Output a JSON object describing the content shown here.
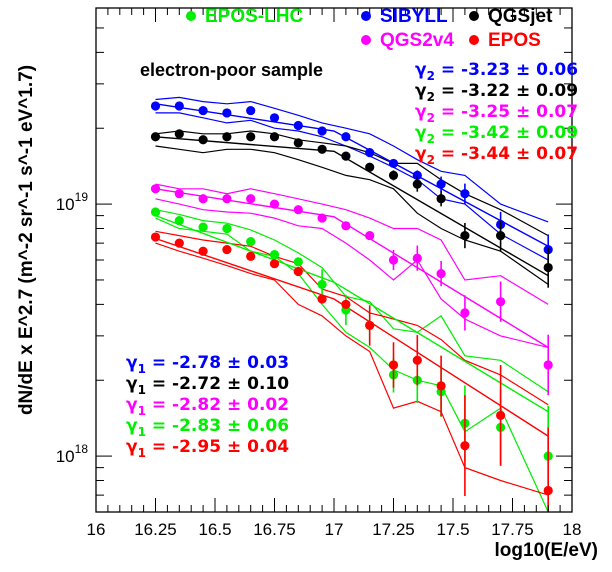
{
  "chart_data": {
    "type": "line",
    "ylabel": "dN/dE x E^2.7 (m^-2 sr^-1 s^-1 eV^1.7)",
    "xlabel": "log10(E/eV)",
    "xlim": [
      16,
      18
    ],
    "ylim": [
      6e+17,
      6e+19
    ],
    "yscale": "log",
    "x_ticks": [
      "16",
      "16.25",
      "16.5",
      "16.75",
      "17",
      "17.25",
      "17.5",
      "17.75",
      "18"
    ],
    "y_ticks": [
      {
        "value": 1e+18,
        "label": "10",
        "exp": "18"
      },
      {
        "value": 1e+19,
        "label": "10",
        "exp": "19"
      }
    ],
    "annotation": "electron-poor sample",
    "x": [
      16.25,
      16.35,
      16.45,
      16.55,
      16.65,
      16.75,
      16.85,
      16.95,
      17.05,
      17.15,
      17.25,
      17.35,
      17.45,
      17.55,
      17.7,
      17.9
    ],
    "series": [
      {
        "name": "EPOS-LHC",
        "color": "#00ee00",
        "values": [
          9.3e+18,
          8.6e+18,
          8.1e+18,
          8e+18,
          7.1e+18,
          6.3e+18,
          5.9e+18,
          4.8e+18,
          3.8e+18,
          3.3e+18,
          2.1e+18,
          2e+18,
          1.8e+18,
          1.35e+18,
          1.3e+18,
          1e+18
        ],
        "err": [
          0,
          0,
          0,
          0,
          0,
          0,
          0,
          0.06,
          0.06,
          0.07,
          0.07,
          0.09,
          0.1,
          0.15,
          0.15,
          0.2
        ],
        "band": [
          [
            8.8e+18,
            8e+18,
            7.8e+18,
            7.6e+18,
            6.5e+18,
            6.2e+18,
            5.3e+18,
            4e+18,
            3.1e+18,
            2.7e+18,
            2.2e+18,
            2e+18,
            1.9e+18,
            1.25e+18,
            1.55e+18,
            6e+17
          ],
          [
            9.5e+18,
            9.1e+18,
            8.6e+18,
            8.4e+18,
            7.9e+18,
            7.2e+18,
            6.4e+18,
            5.6e+18,
            4.3e+18,
            4.1e+18,
            3.2e+18,
            3.1e+18,
            3.6e+18,
            2.5e+18,
            2.4e+18,
            1.8e+18
          ]
        ]
      },
      {
        "name": "SIBYLL",
        "color": "#0000ff",
        "values": [
          2.45e+19,
          2.45e+19,
          2.35e+19,
          2.3e+19,
          2.35e+19,
          2.2e+19,
          2.05e+19,
          1.95e+19,
          1.85e+19,
          1.6e+19,
          1.45e+19,
          1.3e+19,
          1.2e+19,
          1.1e+19,
          8.3e+18,
          6.6e+18
        ],
        "err": [
          0,
          0,
          0,
          0,
          0,
          0,
          0,
          0,
          0,
          0,
          0,
          0.02,
          0.03,
          0.04,
          0.05,
          0.06
        ],
        "band": [
          [
            2.3e+19,
            2.3e+19,
            2.2e+19,
            2.1e+19,
            2.15e+19,
            2e+19,
            1.95e+19,
            1.85e+19,
            1.7e+19,
            1.55e+19,
            1.4e+19,
            1.25e+19,
            1.05e+19,
            1e+19,
            7.6e+18,
            6e+18
          ],
          [
            2.6e+19,
            2.65e+19,
            2.55e+19,
            2.5e+19,
            2.55e+19,
            2.4e+19,
            2.25e+19,
            2.1e+19,
            2e+19,
            1.9e+19,
            1.7e+19,
            1.5e+19,
            1.35e+19,
            1.3e+19,
            1e+19,
            8.5e+18
          ]
        ]
      },
      {
        "name": "QGSjet",
        "color": "#000000",
        "values": [
          1.85e+19,
          1.9e+19,
          1.8e+19,
          1.85e+19,
          1.85e+19,
          1.85e+19,
          1.75e+19,
          1.65e+19,
          1.55e+19,
          1.4e+19,
          1.3e+19,
          1.2e+19,
          1.05e+19,
          7.5e+18,
          7.5e+18,
          5.6e+18
        ],
        "err": [
          0,
          0,
          0,
          0,
          0,
          0,
          0,
          0,
          0,
          0,
          0.02,
          0.03,
          0.03,
          0.05,
          0.06,
          0.08
        ],
        "band": [
          [
            1.7e+19,
            1.65e+19,
            1.6e+19,
            1.65e+19,
            1.65e+19,
            1.6e+19,
            1.5e+19,
            1.4e+19,
            1.3e+19,
            1.25e+19,
            1.15e+19,
            9.2e+18,
            8e+18,
            7.2e+18,
            6.5e+18,
            4.8e+18
          ],
          [
            1.9e+19,
            1.95e+19,
            1.9e+19,
            1.9e+19,
            1.95e+19,
            1.9e+19,
            1.8e+19,
            1.75e+19,
            1.7e+19,
            1.6e+19,
            1.45e+19,
            1.45e+19,
            1.25e+19,
            1.1e+19,
            9.5e+18,
            7.5e+18
          ]
        ]
      },
      {
        "name": "QGS2v4",
        "color": "#ff00ff",
        "values": [
          1.15e+19,
          1.1e+19,
          1.05e+19,
          1.05e+19,
          1.05e+19,
          1e+19,
          9.5e+18,
          8.8e+18,
          8.2e+18,
          7.5e+18,
          6e+18,
          6.1e+18,
          5.3e+18,
          3.7e+18,
          4.1e+18,
          2.3e+18
        ],
        "err": [
          0,
          0,
          0,
          0,
          0,
          0,
          0,
          0,
          0,
          0,
          0.04,
          0.05,
          0.05,
          0.07,
          0.08,
          0.12
        ],
        "band": [
          [
            1.05e+19,
            1e+19,
            9.5e+18,
            9.3e+18,
            9.2e+18,
            8.8e+18,
            8.2e+18,
            8e+18,
            7e+18,
            6e+18,
            5e+18,
            6e+18,
            4.2e+18,
            3.5e+18,
            3e+18,
            2.7e+18
          ],
          [
            1.2e+19,
            1.15e+19,
            1.15e+19,
            1.1e+19,
            1.15e+19,
            1.1e+19,
            1.05e+19,
            1e+19,
            9.5e+18,
            8.8e+18,
            8e+18,
            8e+18,
            7.2e+18,
            5e+18,
            5.2e+18,
            4e+18
          ]
        ]
      },
      {
        "name": "EPOS",
        "color": "#ff0000",
        "values": [
          7.4e+18,
          7e+18,
          6.5e+18,
          6.6e+18,
          6.2e+18,
          5.8e+18,
          5.4e+18,
          4.2e+18,
          4e+18,
          3.3e+18,
          2.3e+18,
          2.4e+18,
          1.9e+18,
          1.1e+18,
          1.45e+18,
          7.3e+17
        ],
        "err": [
          0,
          0,
          0,
          0,
          0,
          0,
          0,
          0,
          0,
          0.08,
          0.09,
          0.1,
          0.12,
          0.2,
          0.2,
          0.25
        ],
        "band": [
          [
            7e+18,
            6.5e+18,
            6.1e+18,
            5.7e+18,
            5.3e+18,
            5e+18,
            4e+18,
            3.6e+18,
            3e+18,
            2.6e+18,
            1.55e+18,
            1.65e+18,
            1.5e+18,
            9e+17,
            8e+17,
            7e+17
          ],
          [
            7.8e+18,
            7.5e+18,
            7.2e+18,
            7e+18,
            6.8e+18,
            6.2e+18,
            5.8e+18,
            4.6e+18,
            4.3e+18,
            3.7e+18,
            3.5e+18,
            3.3e+18,
            2.9e+18,
            2.4e+18,
            2.1e+18,
            1.6e+18
          ]
        ]
      }
    ],
    "fits": [
      {
        "color": "#0000ff",
        "x": [
          16.25,
          17.0,
          17.9
        ],
        "values": [
          2.5e+19,
          1.95e+19,
          6.8e+18
        ]
      },
      {
        "color": "#000000",
        "x": [
          16.25,
          17.0,
          17.9
        ],
        "values": [
          1.85e+19,
          1.62e+19,
          5.2e+18
        ]
      },
      {
        "color": "#ff00ff",
        "x": [
          16.25,
          17.0,
          17.9
        ],
        "values": [
          1.15e+19,
          8.9e+18,
          2.7e+18
        ]
      },
      {
        "color": "#00ee00",
        "x": [
          16.25,
          17.0,
          17.9
        ],
        "values": [
          9e+18,
          4.9e+18,
          1.5e+18
        ]
      },
      {
        "color": "#ff0000",
        "x": [
          16.25,
          17.0,
          17.9
        ],
        "values": [
          7.3e+18,
          4.2e+18,
          1.2e+18
        ]
      }
    ],
    "legend": [
      {
        "label": "EPOS-LHC",
        "color": "#00ee00",
        "col": 0,
        "row": 0
      },
      {
        "label": "SIBYLL",
        "color": "#0000ff",
        "col": 1,
        "row": 0
      },
      {
        "label": "QGSjet",
        "color": "#000000",
        "col": 2,
        "row": 0
      },
      {
        "label": "QGS2v4",
        "color": "#ff00ff",
        "col": 1,
        "row": 1
      },
      {
        "label": "EPOS",
        "color": "#ff0000",
        "col": 2,
        "row": 1
      }
    ],
    "gamma2": [
      {
        "text": "= -3.23 ± 0.06",
        "color": "#0000ff"
      },
      {
        "text": "= -3.22 ± 0.09",
        "color": "#000000"
      },
      {
        "text": "= -3.25 ± 0.07",
        "color": "#ff00ff"
      },
      {
        "text": "= -3.42 ± 0.09",
        "color": "#00ee00"
      },
      {
        "text": "= -3.44 ± 0.07",
        "color": "#ff0000"
      }
    ],
    "gamma1": [
      {
        "text": "= -2.78 ± 0.03",
        "color": "#0000ff"
      },
      {
        "text": "= -2.72 ± 0.10",
        "color": "#000000"
      },
      {
        "text": "= -2.82 ± 0.02",
        "color": "#ff00ff"
      },
      {
        "text": "= -2.83 ± 0.06",
        "color": "#00ee00"
      },
      {
        "text": "= -2.95 ± 0.04",
        "color": "#ff0000"
      }
    ]
  }
}
